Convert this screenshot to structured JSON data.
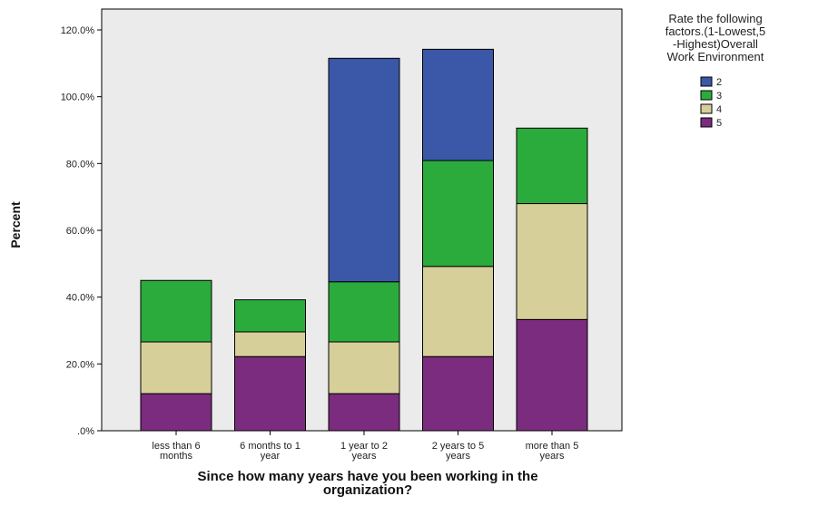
{
  "chart_data": {
    "type": "bar",
    "stacked": true,
    "title": "",
    "xlabel": "Since how many years have you been working in the organization?",
    "ylabel": "Percent",
    "ylim": [
      0,
      120
    ],
    "y_tick_labels": [
      "120.0%",
      "100.0%",
      "80.0%",
      "60.0%",
      "40.0%",
      "20.0%",
      ".0%"
    ],
    "y_tick_values": [
      120,
      100,
      80,
      60,
      40,
      20,
      0
    ],
    "categories": [
      "less than 6 months",
      "6 months to 1 year",
      "1 year to 2 years",
      "2 years to 5 years",
      "more than 5 years"
    ],
    "category_label_lines": [
      [
        "less than 6",
        "months"
      ],
      [
        "6 months to 1",
        "year"
      ],
      [
        "1 year to 2",
        "years"
      ],
      [
        "2 years to 5",
        "years"
      ],
      [
        "more than 5",
        "years"
      ]
    ],
    "legend_title_lines": [
      "Rate the following",
      "factors.(1-Lowest,5",
      "-Highest)Overall",
      "Work Environment"
    ],
    "legend_position": "right",
    "grid": false,
    "plot_background": "#ebebeb",
    "series": [
      {
        "name": "5",
        "color": "#7b2c7e",
        "values": [
          11.1,
          22.2,
          11.1,
          22.2,
          33.3
        ]
      },
      {
        "name": "4",
        "color": "#d7cf9a",
        "values": [
          15.5,
          7.4,
          15.5,
          27.0,
          34.7
        ]
      },
      {
        "name": "3",
        "color": "#2bab3c",
        "values": [
          18.4,
          9.6,
          18.0,
          31.7,
          22.6
        ]
      },
      {
        "name": "2",
        "color": "#3b58a8",
        "values": [
          0,
          0,
          66.9,
          33.3,
          0
        ]
      }
    ],
    "legend_order": [
      "2",
      "3",
      "4",
      "5"
    ]
  }
}
